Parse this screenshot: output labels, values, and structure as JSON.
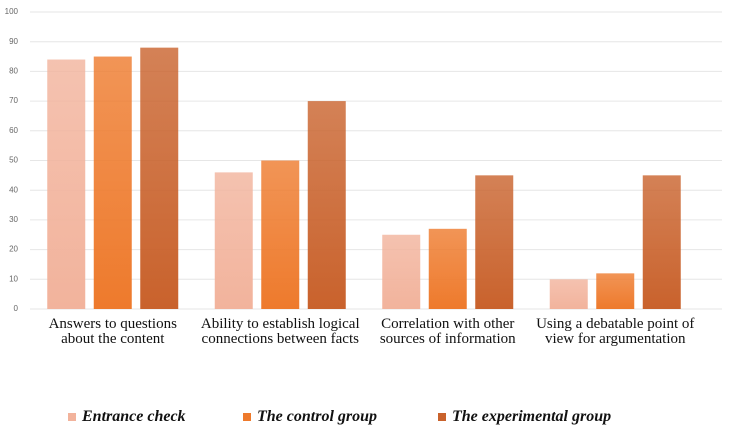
{
  "chart_data": {
    "type": "bar",
    "categories": [
      "Answers to questions about the content",
      "Ability to establish logical connections between facts",
      "Correlation with other sources of information",
      "Using a debatable point of view for argumentation"
    ],
    "series": [
      {
        "name": "Entrance check",
        "color": "#f2b39c",
        "values": [
          84,
          46,
          25,
          10
        ]
      },
      {
        "name": "The control group",
        "color": "#ee7a2c",
        "values": [
          85,
          50,
          27,
          12
        ]
      },
      {
        "name": "The experimental group",
        "color": "#c9622c",
        "values": [
          88,
          70,
          45,
          45
        ]
      }
    ],
    "ylim": [
      0,
      100
    ],
    "yticks": [
      0,
      10,
      20,
      30,
      40,
      50,
      60,
      70,
      80,
      90,
      100
    ],
    "grid": true,
    "legend": "bottom"
  }
}
